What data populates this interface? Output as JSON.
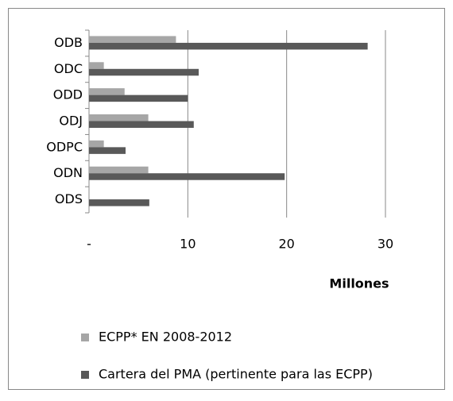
{
  "chart_data": {
    "type": "hbar",
    "categories": [
      "ODB",
      "ODC",
      "ODD",
      "ODJ",
      "ODPC",
      "ODN",
      "ODS"
    ],
    "series": [
      {
        "name": "ECPP* EN 2008-2012",
        "color": "#a6a6a6",
        "values": [
          8.8,
          1.5,
          3.6,
          6.0,
          1.5,
          6.0,
          0
        ]
      },
      {
        "name": "Cartera del PMA (pertinente para las ECPP)",
        "color": "#595959",
        "values": [
          28.2,
          11.1,
          10.0,
          10.6,
          3.7,
          19.8,
          6.1
        ]
      }
    ],
    "xlabel": "Millones",
    "xlim": [
      0,
      30
    ],
    "xticks": [
      {
        "value": 0,
        "label": "-"
      },
      10,
      20,
      30
    ],
    "grid": true,
    "legend": "bottom"
  }
}
